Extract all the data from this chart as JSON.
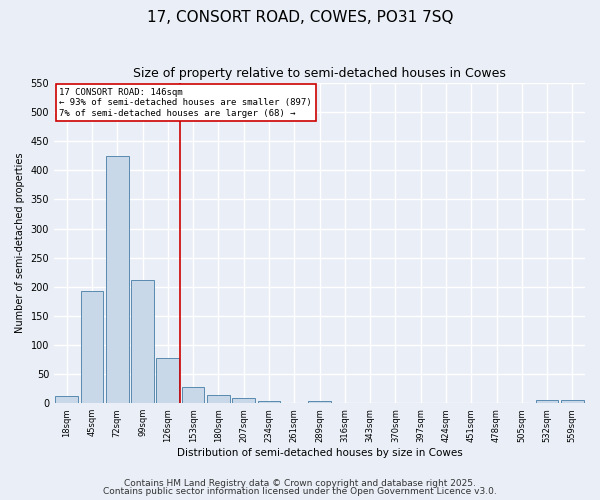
{
  "title": "17, CONSORT ROAD, COWES, PO31 7SQ",
  "subtitle": "Size of property relative to semi-detached houses in Cowes",
  "xlabel": "Distribution of semi-detached houses by size in Cowes",
  "ylabel": "Number of semi-detached properties",
  "bar_labels": [
    "18sqm",
    "45sqm",
    "72sqm",
    "99sqm",
    "126sqm",
    "153sqm",
    "180sqm",
    "207sqm",
    "234sqm",
    "261sqm",
    "289sqm",
    "316sqm",
    "343sqm",
    "370sqm",
    "397sqm",
    "424sqm",
    "451sqm",
    "478sqm",
    "505sqm",
    "532sqm",
    "559sqm"
  ],
  "bar_values": [
    13,
    193,
    424,
    211,
    77,
    28,
    14,
    9,
    4,
    0,
    4,
    0,
    0,
    0,
    0,
    0,
    0,
    0,
    0,
    5,
    5
  ],
  "bar_color": "#c8d8e8",
  "bar_edge_color": "#5a8ab0",
  "property_line_x": 4.5,
  "property_line_color": "#cc0000",
  "ylim": [
    0,
    550
  ],
  "yticks": [
    0,
    50,
    100,
    150,
    200,
    250,
    300,
    350,
    400,
    450,
    500,
    550
  ],
  "annotation_title": "17 CONSORT ROAD: 146sqm",
  "annotation_line1": "← 93% of semi-detached houses are smaller (897)",
  "annotation_line2": "7% of semi-detached houses are larger (68) →",
  "annotation_box_color": "#ffffff",
  "annotation_box_edge_color": "#cc0000",
  "footnote1": "Contains HM Land Registry data © Crown copyright and database right 2025.",
  "footnote2": "Contains public sector information licensed under the Open Government Licence v3.0.",
  "bg_color": "#eaeff7",
  "plot_bg_color": "#eaeff7",
  "grid_color": "#ffffff",
  "title_fontsize": 11,
  "subtitle_fontsize": 9,
  "footnote_fontsize": 6.5
}
